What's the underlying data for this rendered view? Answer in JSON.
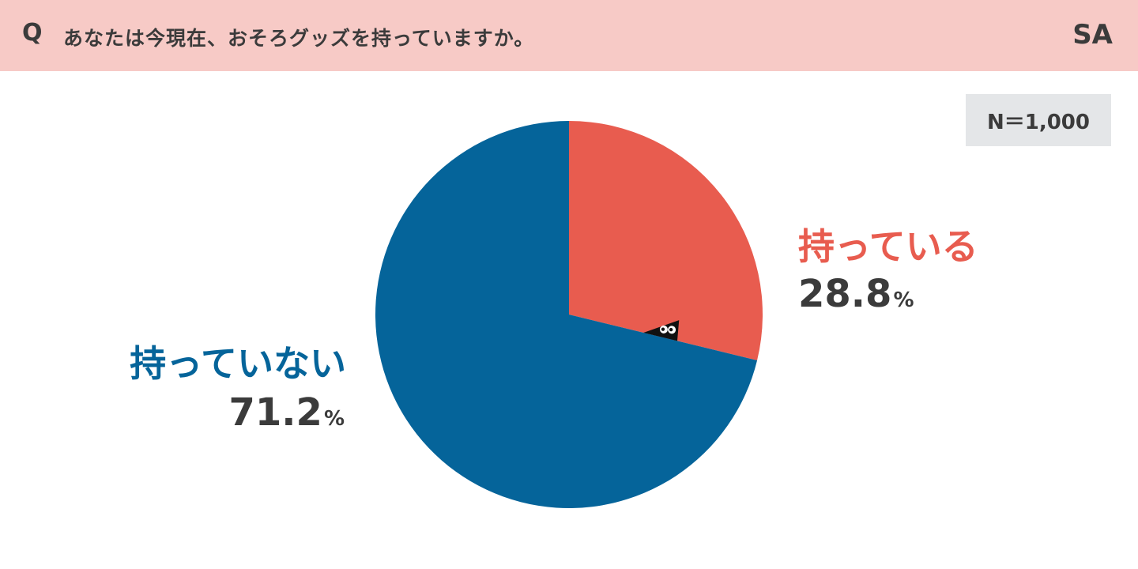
{
  "header": {
    "q_mark": "Q",
    "question": "あなたは今現在、おそろグッズを持っていますか。",
    "answer_type": "SA"
  },
  "sample": {
    "label": "N＝1,000"
  },
  "chart_data": {
    "type": "pie",
    "title": "",
    "slices": [
      {
        "name": "持っている",
        "value": 28.8,
        "display_value": "28.8",
        "unit": "%",
        "color": "#e85c4f"
      },
      {
        "name": "持っていない",
        "value": 71.2,
        "display_value": "71.2",
        "unit": "%",
        "color": "#05649a"
      }
    ],
    "start": "12 o'clock",
    "direction": "clockwise"
  },
  "mascot": {
    "icon": "peeking-creature-icon",
    "color": "#111111"
  }
}
